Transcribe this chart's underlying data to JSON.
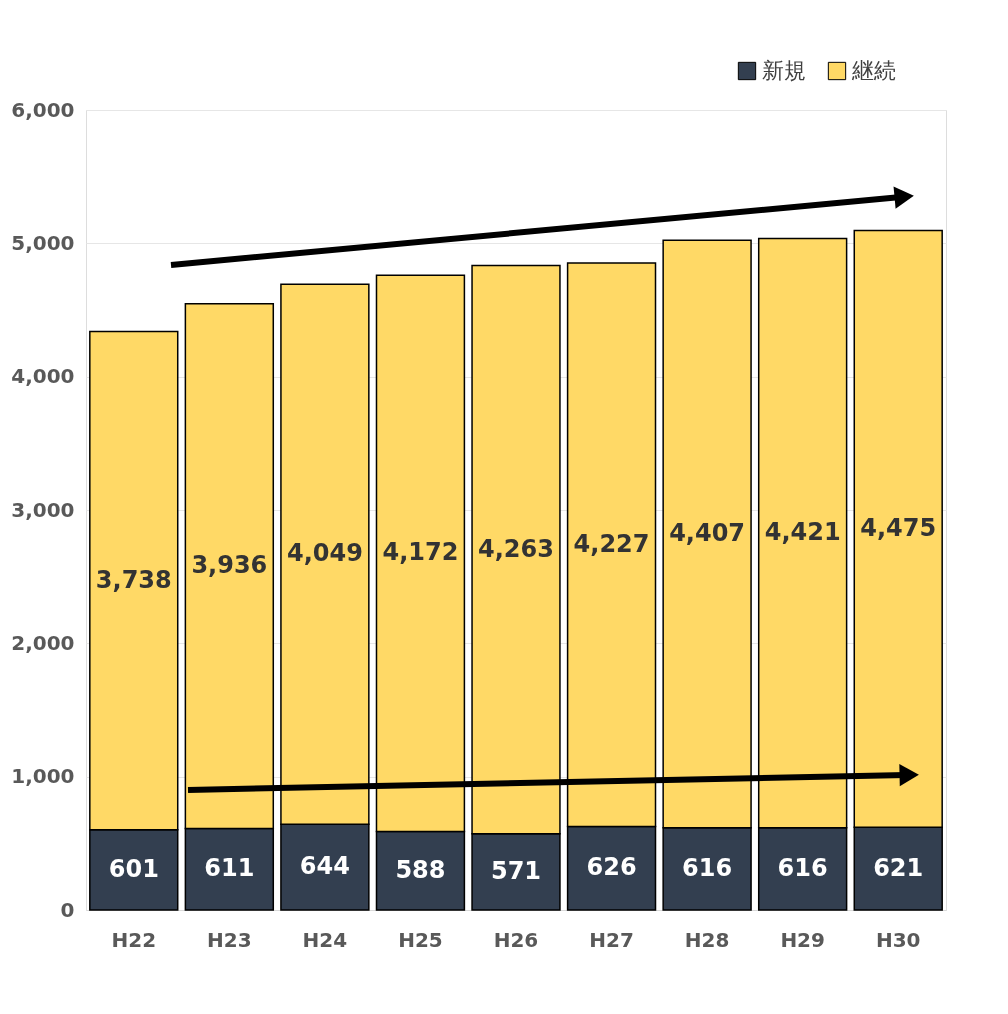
{
  "chart_data": {
    "type": "bar",
    "stacked": true,
    "categories": [
      "H22",
      "H23",
      "H24",
      "H25",
      "H26",
      "H27",
      "H28",
      "H29",
      "H30"
    ],
    "series": [
      {
        "name": "新規",
        "color": "#333f50",
        "values": [
          601,
          611,
          644,
          588,
          571,
          626,
          616,
          616,
          621
        ],
        "value_labels": [
          "601",
          "611",
          "644",
          "588",
          "571",
          "626",
          "616",
          "616",
          "621"
        ]
      },
      {
        "name": "継続",
        "color": "#ffd966",
        "values": [
          3738,
          3936,
          4049,
          4172,
          4263,
          4227,
          4407,
          4421,
          4475
        ],
        "value_labels": [
          "3,738",
          "3,936",
          "4,049",
          "4,172",
          "4,263",
          "4,227",
          "4,407",
          "4,421",
          "4,475"
        ]
      }
    ],
    "ylim": [
      0,
      6000
    ],
    "yticks": [
      0,
      {
        "value": 1000,
        "label": "1,000"
      },
      {
        "value": 2000,
        "label": "2,000"
      },
      {
        "value": 3000,
        "label": "3,000"
      },
      {
        "value": 4000,
        "label": "4,000"
      },
      {
        "value": 5000,
        "label": "5,000"
      },
      {
        "value": 6000,
        "label": "6,000"
      }
    ],
    "grid": "y",
    "legend": "top right"
  }
}
